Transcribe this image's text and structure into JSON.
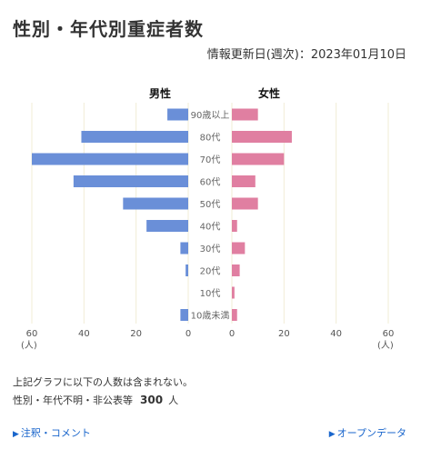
{
  "title": "性別・年代別重症者数",
  "updated": "情報更新日(週次)：2023年01月10日",
  "chart_data": {
    "type": "bar",
    "orientation": "horizontal-butterfly",
    "categories": [
      "90歳以上",
      "80代",
      "70代",
      "60代",
      "50代",
      "40代",
      "30代",
      "20代",
      "10代",
      "10歳未満"
    ],
    "series": [
      {
        "name": "男性",
        "values": [
          8,
          41,
          60,
          44,
          25,
          16,
          3,
          1,
          0,
          3
        ],
        "color": "#6a8fd8"
      },
      {
        "name": "女性",
        "values": [
          10,
          23,
          20,
          9,
          10,
          2,
          5,
          3,
          1,
          2
        ],
        "color": "#e07fa1"
      }
    ],
    "xlim": [
      0,
      60
    ],
    "ticks": [
      "60",
      "40",
      "20",
      "0"
    ],
    "unit": "(人)",
    "grid": true
  },
  "notes": {
    "line1": "上記グラフに以下の人数は含まれない。",
    "line2_label": "性別・年代不明・非公表等",
    "line2_value": "300",
    "line2_unit": "人"
  },
  "links": {
    "comments": "注釈・コメント",
    "opendata": "オープンデータ",
    "arrow": "▶"
  }
}
